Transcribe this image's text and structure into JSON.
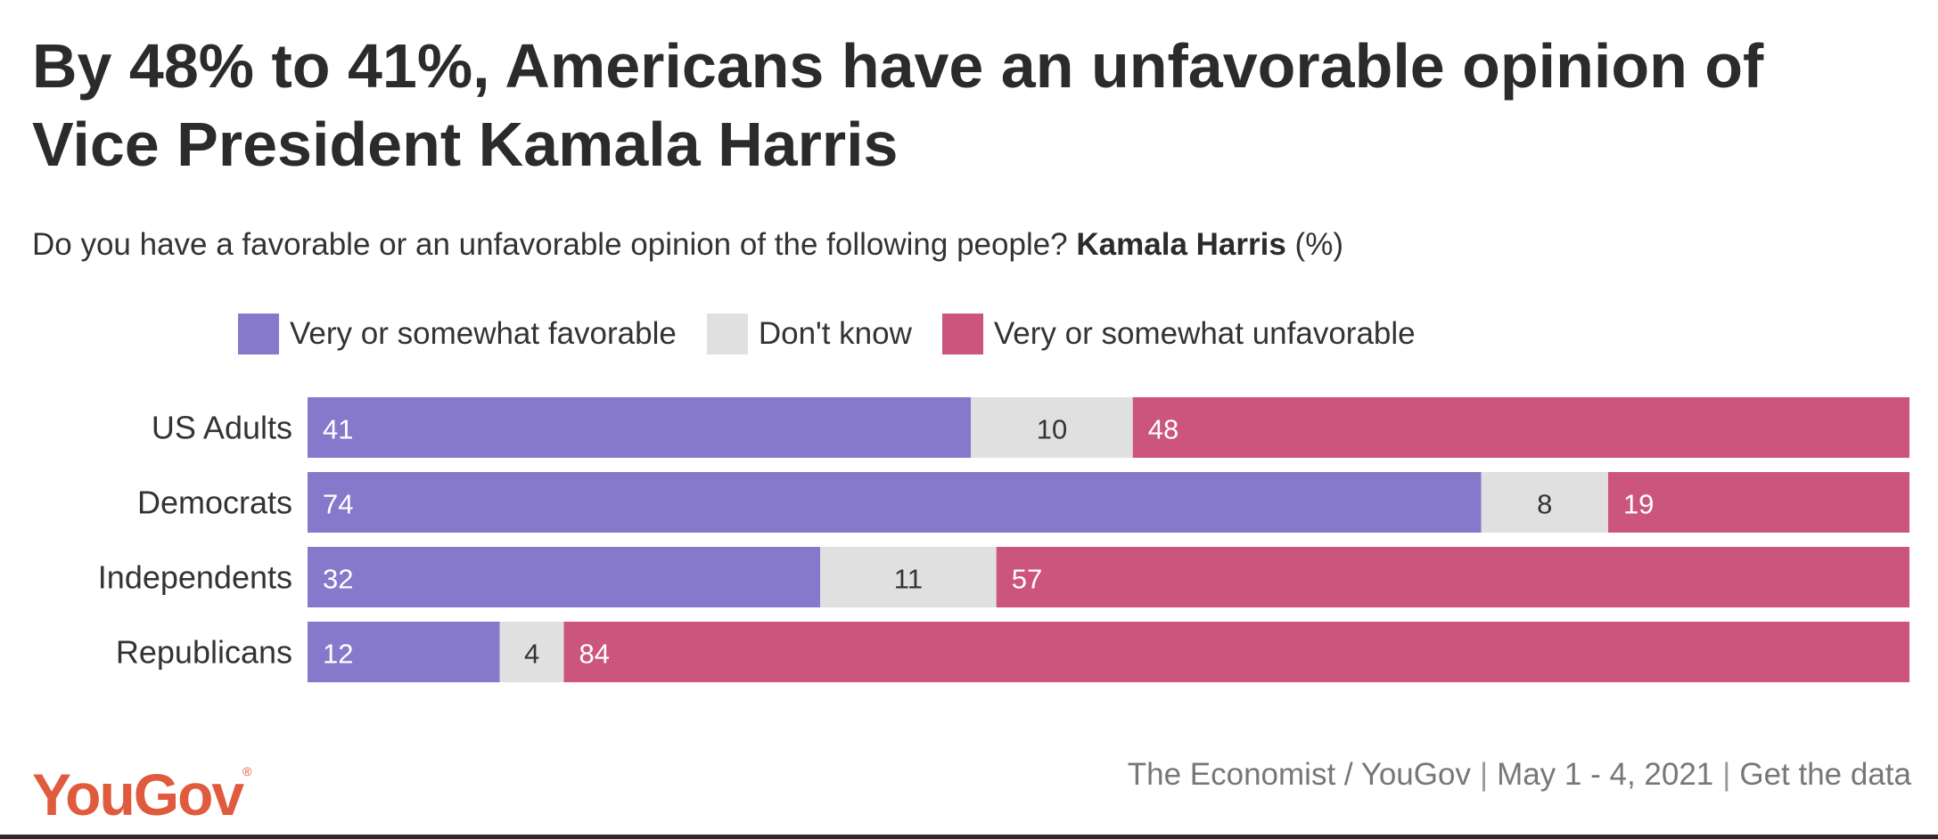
{
  "title": "By 48% to 41%, Americans have an unfavorable opinion of Vice President Kamala Harris",
  "subtitle": {
    "question": "Do you have a favorable or an unfavorable opinion of the following people?",
    "subject": "Kamala Harris",
    "unit": "(%)"
  },
  "chart_data": {
    "type": "bar",
    "orientation": "horizontal",
    "stacked": true,
    "categories": [
      "US Adults",
      "Democrats",
      "Independents",
      "Republicans"
    ],
    "series": [
      {
        "name": "Very or somewhat favorable",
        "color": "#8679cc",
        "label_color": "#ffffff",
        "values": [
          41,
          74,
          32,
          12
        ]
      },
      {
        "name": "Don't know",
        "color": "#e0e0e0",
        "label_color": "#333333",
        "values": [
          10,
          8,
          11,
          4
        ]
      },
      {
        "name": "Very or somewhat unfavorable",
        "color": "#cb557c",
        "label_color": "#ffffff",
        "values": [
          48,
          19,
          57,
          84
        ]
      }
    ],
    "legend_position": "top",
    "grid": false
  },
  "footer": {
    "logo_text": "YouGov",
    "logo_mark": "®",
    "source": "The Economist / YouGov",
    "date": "May 1 - 4, 2021",
    "data_link": "Get the data",
    "separator": "|"
  }
}
